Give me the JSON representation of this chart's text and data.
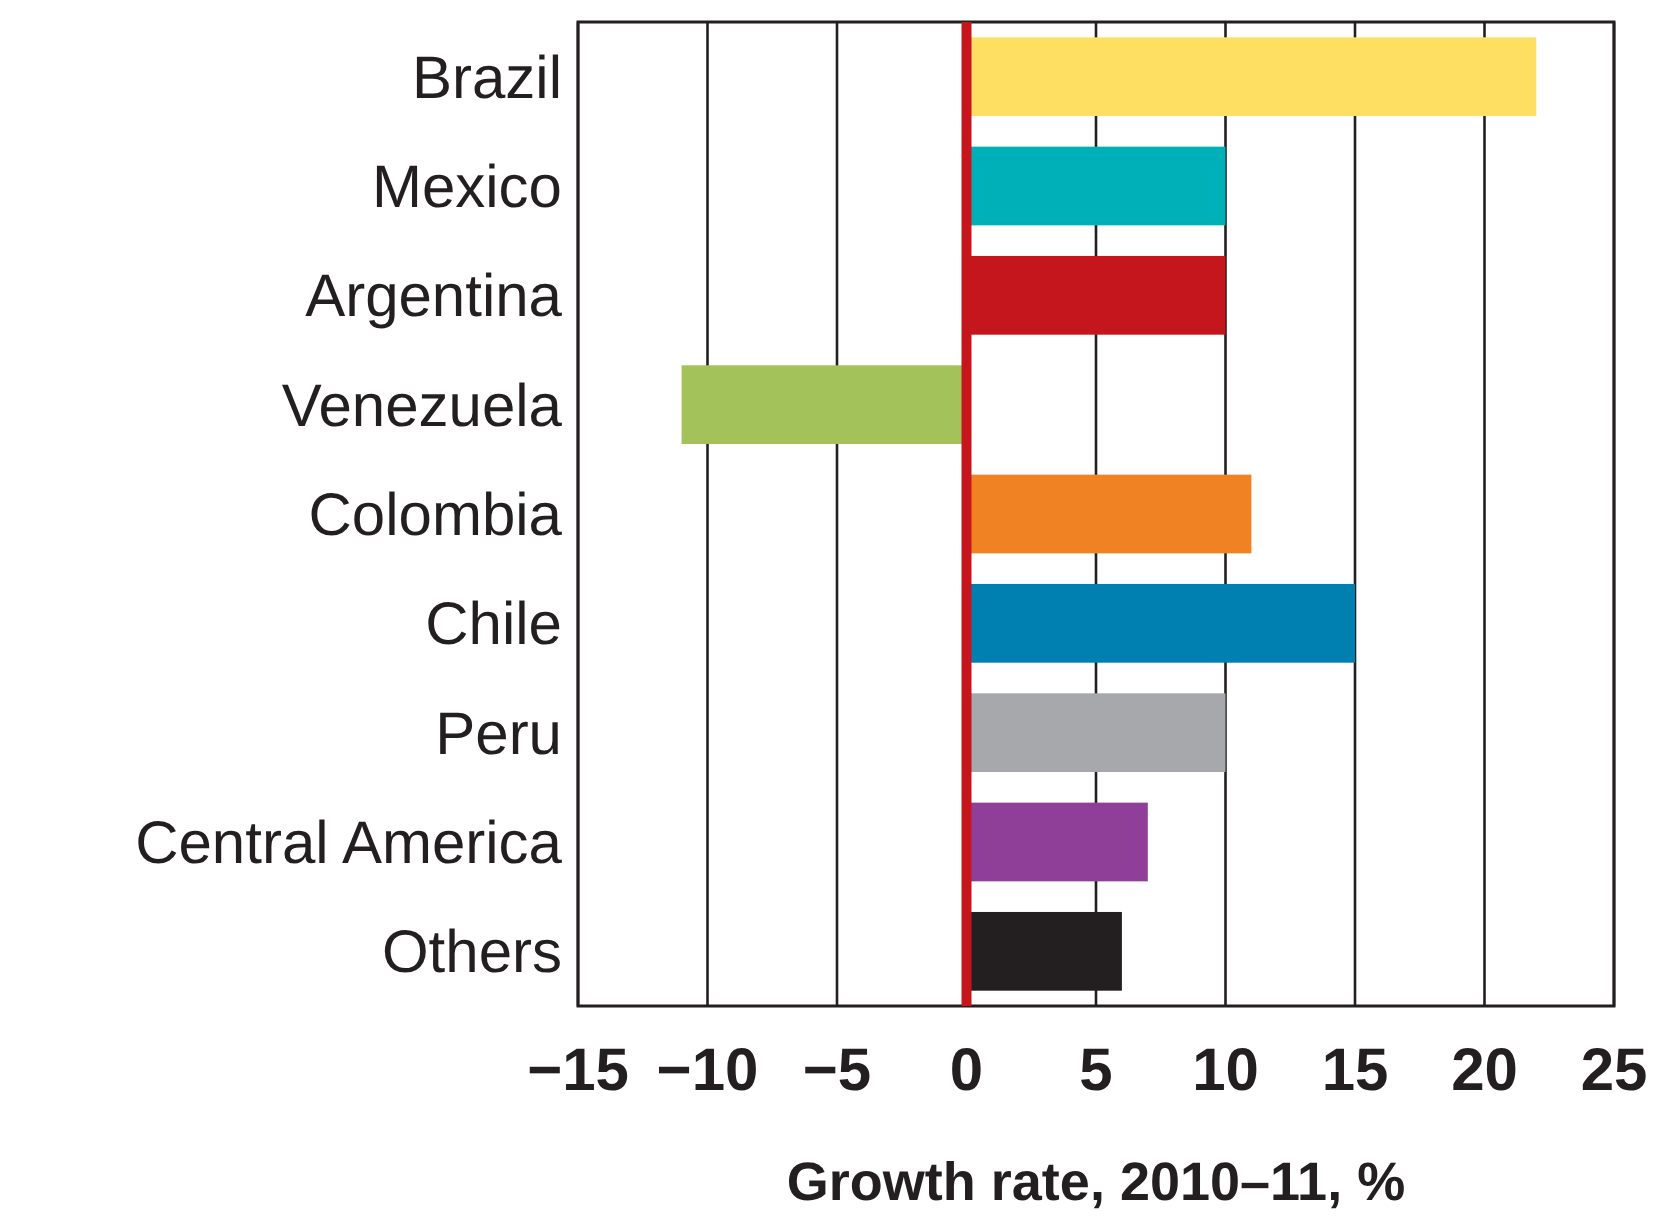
{
  "chart_data": {
    "type": "bar",
    "orientation": "horizontal",
    "xlabel": "Growth rate, 2010–11, %",
    "categories": [
      "Brazil",
      "Mexico",
      "Argentina",
      "Venezuela",
      "Colombia",
      "Chile",
      "Peru",
      "Central America",
      "Others"
    ],
    "values": [
      22,
      10,
      10,
      -11,
      11,
      15,
      10,
      7,
      6
    ],
    "colors": [
      "#ffdf62",
      "#00b0b8",
      "#c4161c",
      "#a3c25a",
      "#f08223",
      "#0080b0",
      "#a7a8ab",
      "#903f99",
      "#231f20"
    ],
    "xlim": [
      -15,
      25
    ],
    "xticks": [
      {
        "value": -15,
        "label": "−15"
      },
      {
        "value": -10,
        "label": "−10"
      },
      {
        "value": -5,
        "label": "−5"
      },
      0,
      5,
      10,
      15,
      20,
      25
    ],
    "grid": "x",
    "ref_lines": [
      {
        "axis": "x",
        "value": 0,
        "color": "#c4161c"
      }
    ]
  }
}
